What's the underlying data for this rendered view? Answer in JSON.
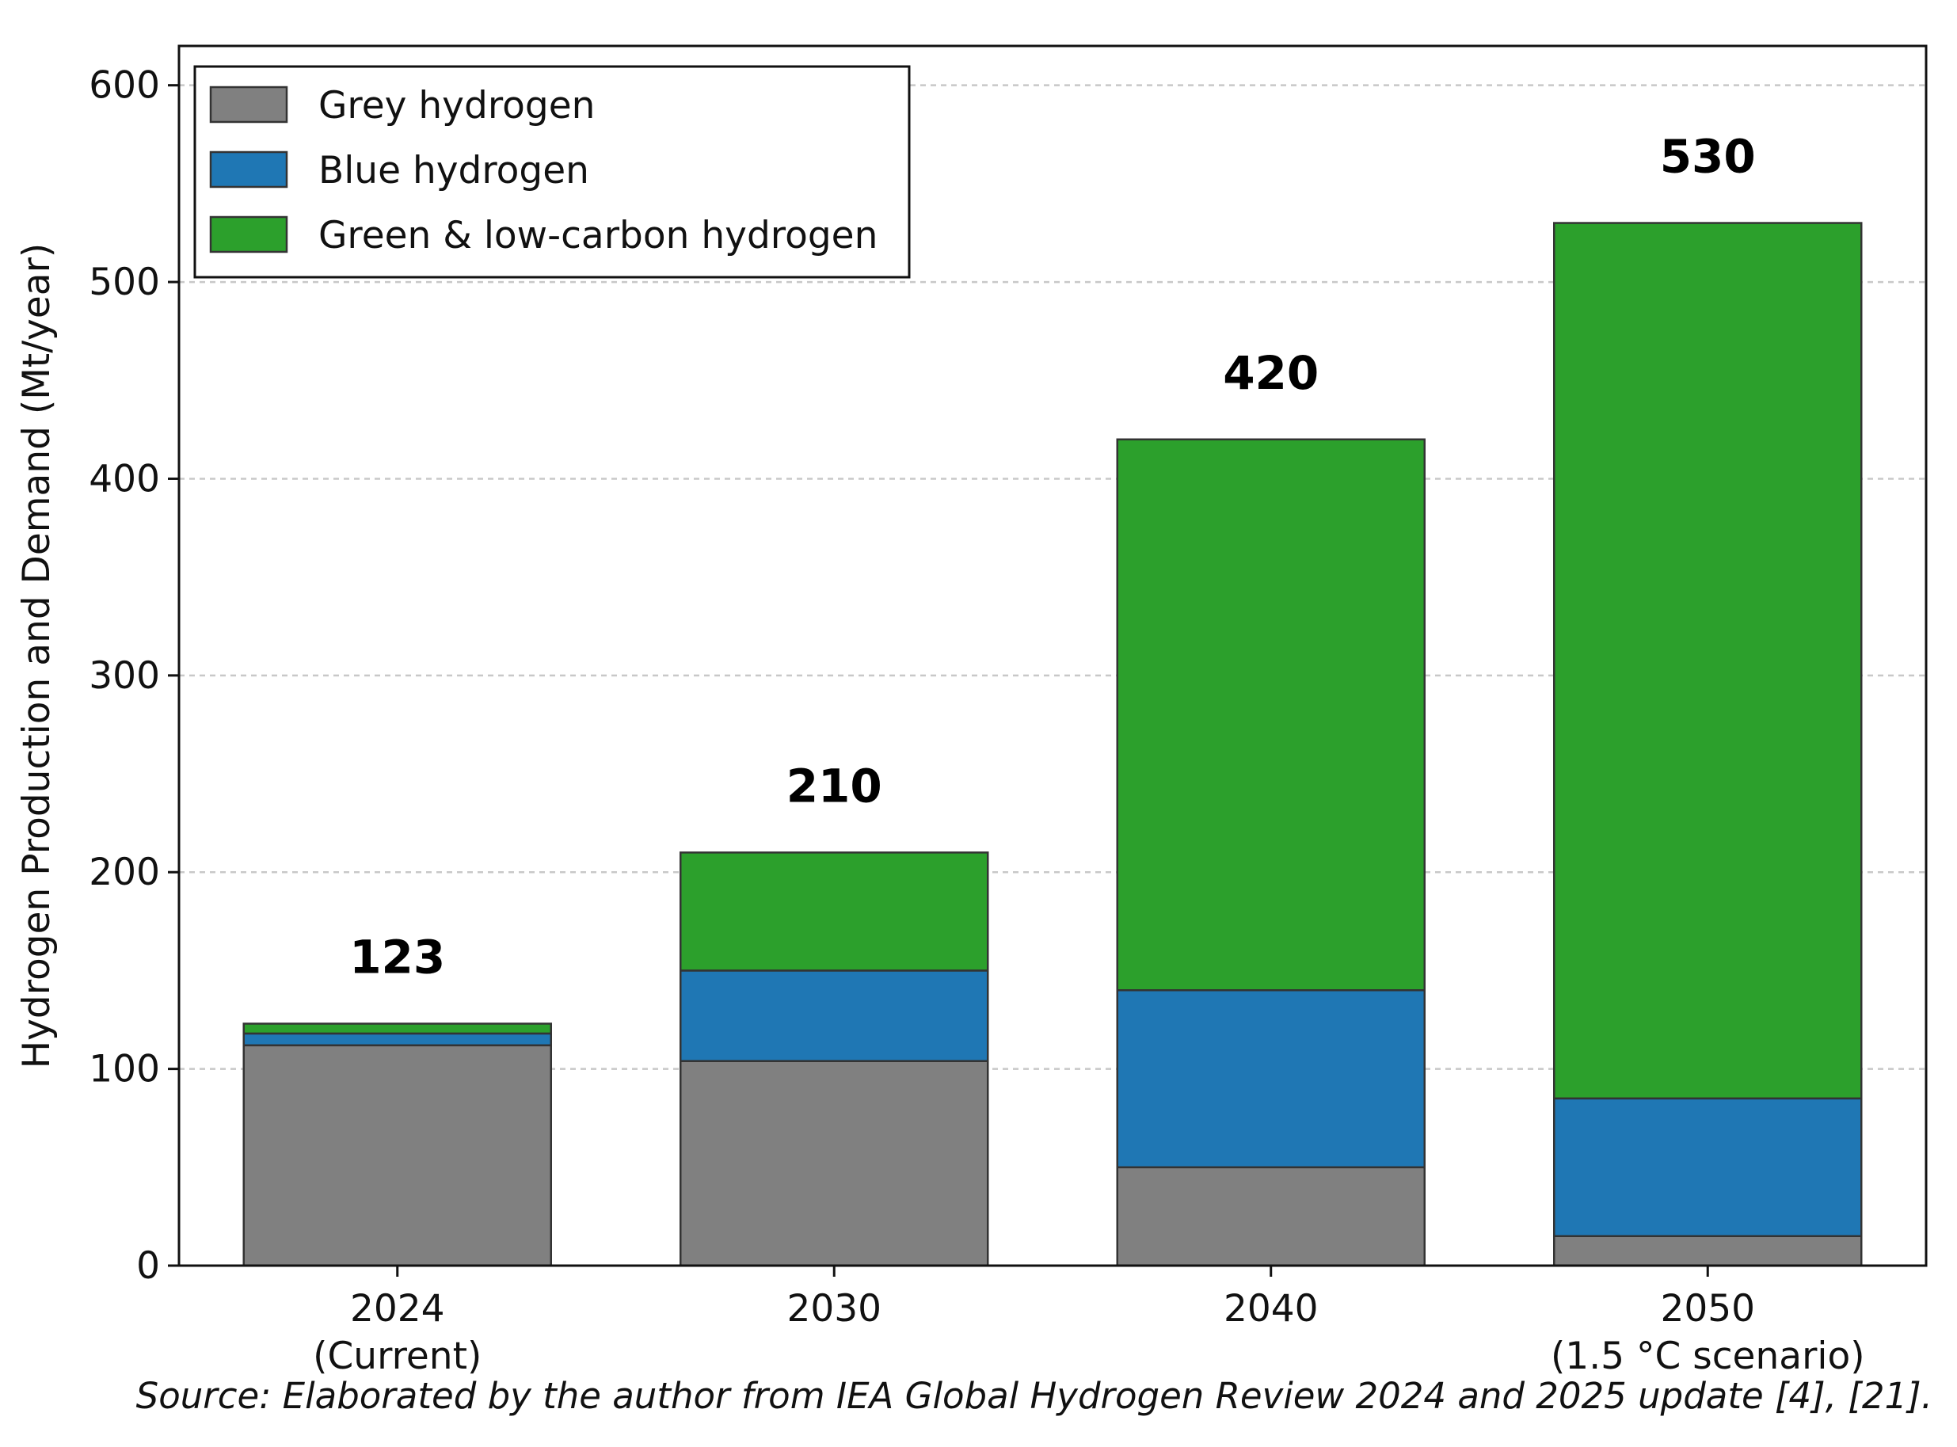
{
  "chart_data": {
    "type": "bar",
    "stacked": true,
    "categories": [
      [
        "2024",
        "(Current)"
      ],
      [
        "2030"
      ],
      [
        "2040"
      ],
      [
        "2050",
        "(1.5 °C scenario)"
      ]
    ],
    "series": [
      {
        "name": "Grey hydrogen",
        "color": "#808080",
        "values": [
          112,
          104,
          50,
          15
        ]
      },
      {
        "name": "Blue hydrogen",
        "color": "#1f77b4",
        "values": [
          6,
          46,
          90,
          70
        ]
      },
      {
        "name": "Green & low-carbon hydrogen",
        "color": "#2ca02c",
        "values": [
          5,
          60,
          280,
          445
        ]
      }
    ],
    "totals": [
      "123",
      "210",
      "420",
      "530"
    ],
    "ylabel": "Hydrogen Production and Demand (Mt/year)",
    "ylim": [
      0,
      620
    ],
    "yticks": [
      0,
      100,
      200,
      300,
      400,
      500,
      600
    ],
    "grid": "y-dashed",
    "legend_position": "top-left",
    "source_note": "Source: Elaborated by the author from IEA Global Hydrogen Review 2024 and 2025 update [4], [21]."
  }
}
